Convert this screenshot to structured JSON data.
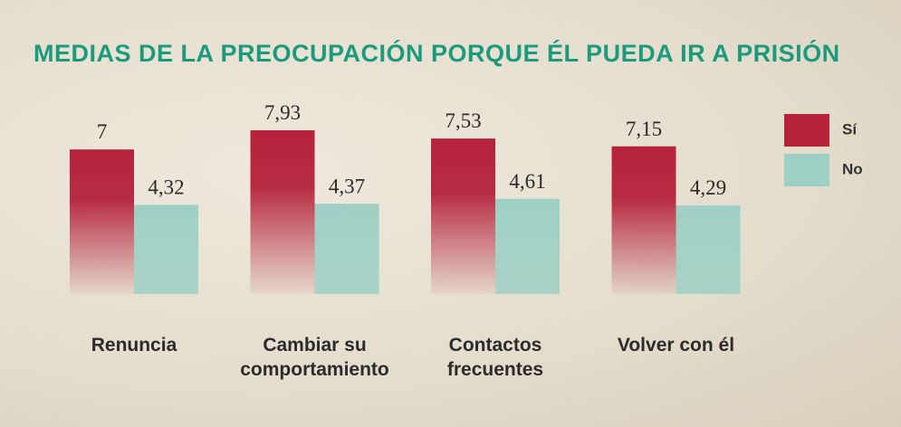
{
  "chart_data": {
    "type": "bar",
    "title": "MEDIAS DE LA PREOCUPACIÓN PORQUE ÉL PUEDA IR A PRISIÓN",
    "categories": [
      "Renuncia",
      "Cambiar su comportamiento",
      "Contactos frecuentes",
      "Volver con él"
    ],
    "series": [
      {
        "name": "Sí",
        "color": "#b5233b",
        "values": [
          7,
          7.93,
          7.53,
          7.15
        ],
        "value_labels": [
          "7",
          "7,93",
          "7,53",
          "7,15"
        ]
      },
      {
        "name": "No",
        "color": "#9fd0c5",
        "values": [
          4.32,
          4.37,
          4.61,
          4.29
        ],
        "value_labels": [
          "4,32",
          "4,37",
          "4,61",
          "4,29"
        ]
      }
    ],
    "legend": "top-right"
  }
}
